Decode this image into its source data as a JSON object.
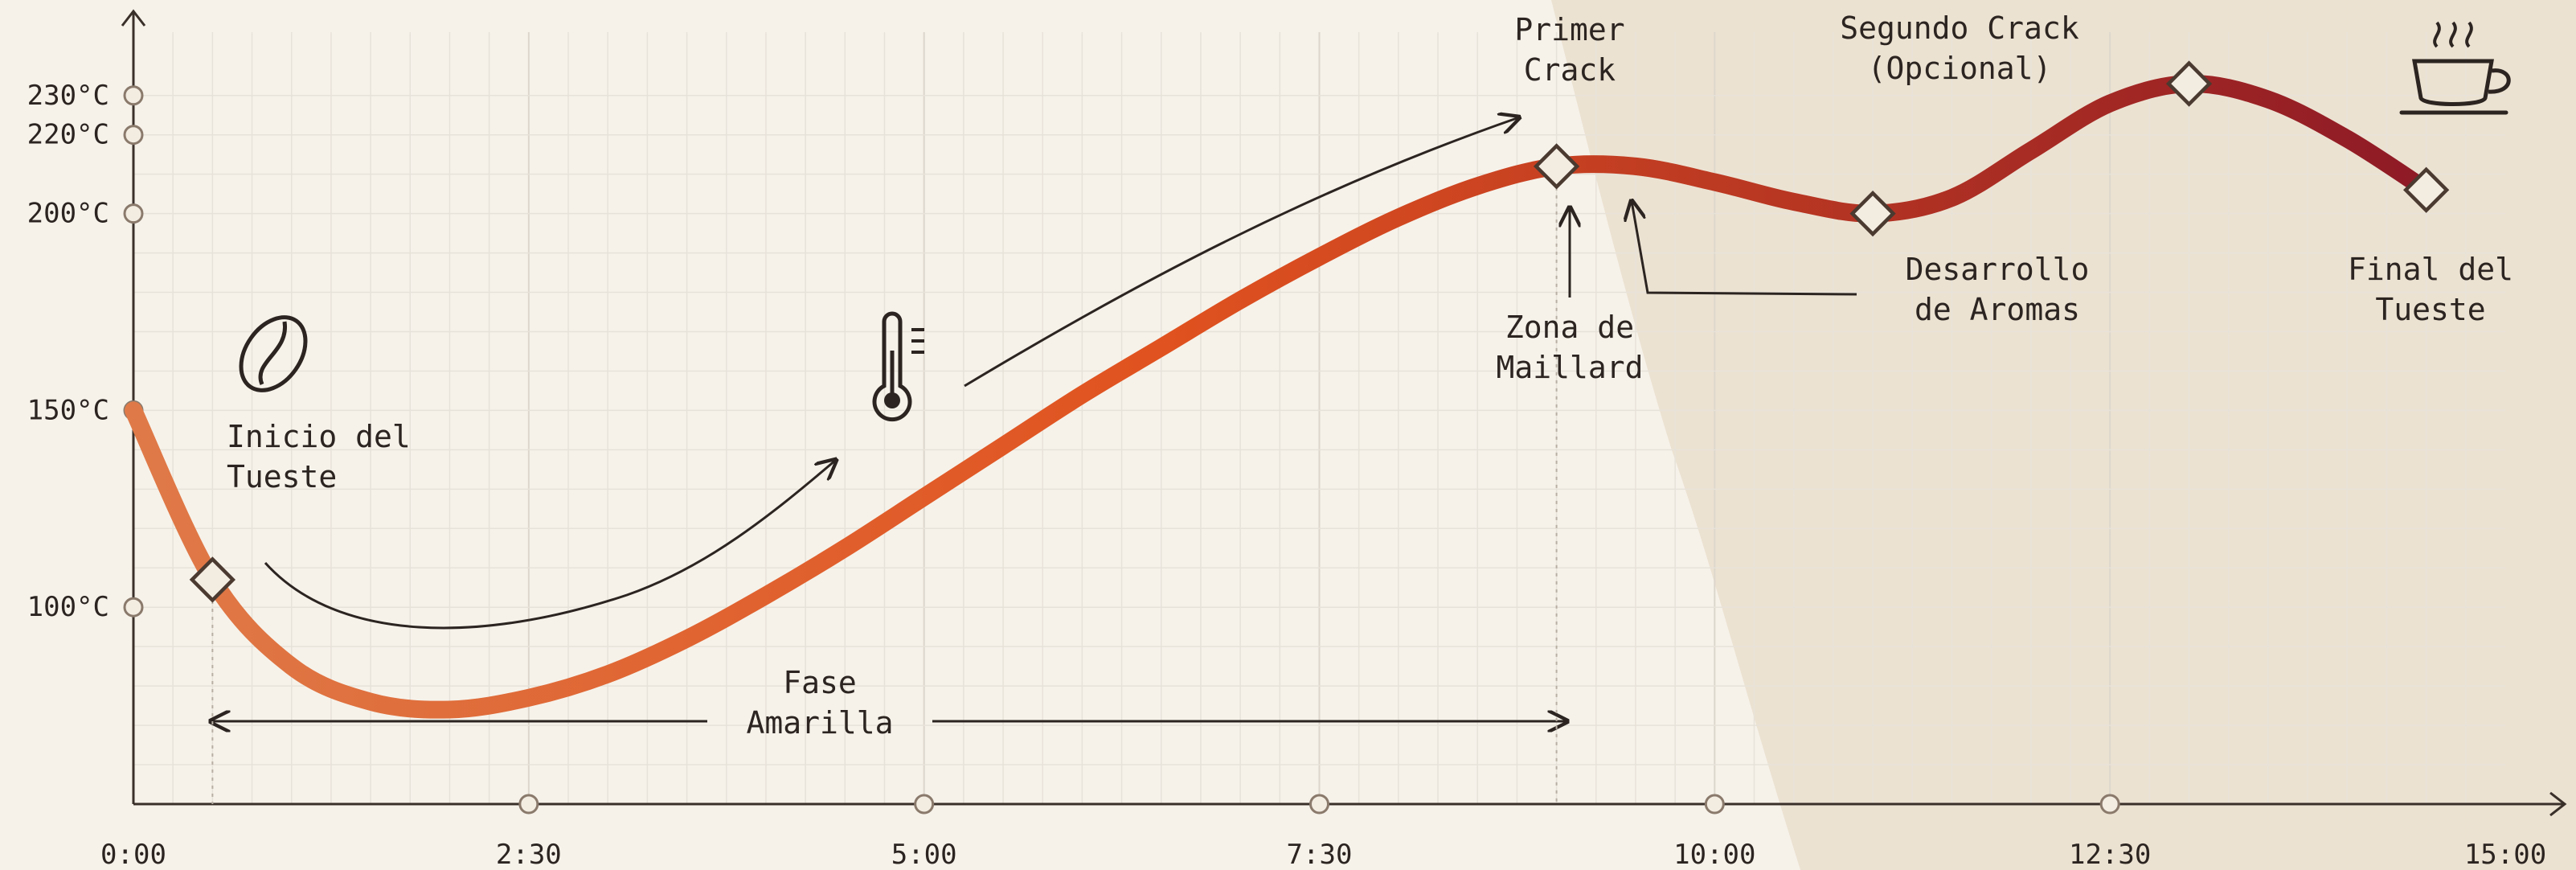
{
  "colors": {
    "background": "#f6f2ea",
    "grid": "#dcd6cc",
    "grid_minor": "#e7e2d9",
    "axis": "#3a302a",
    "shade": "#ece2d2",
    "curve_start": "#df7a48",
    "curve_mid": "#e0521f",
    "curve_end": "#8e1a26",
    "marker_fill": "#f3ece1",
    "marker_stroke": "#4a3a30",
    "ink": "#2b2420"
  },
  "icons": [
    "coffee-bean-icon",
    "thermometer-icon",
    "coffee-cup-icon"
  ],
  "chart_data": {
    "type": "line",
    "title": "",
    "xlabel": "",
    "ylabel": "",
    "x_unit": "min:sec",
    "xlim": [
      "0:00",
      "15:00"
    ],
    "ylim": [
      50,
      242
    ],
    "grid": true,
    "x_ticks": [
      "0:00",
      "2:30",
      "5:00",
      "7:30",
      "10:00",
      "12:30",
      "15:00"
    ],
    "y_ticks": [
      "100°C",
      "150°C",
      "200°C",
      "220°C",
      "230°C"
    ],
    "series": [
      {
        "points": [
          {
            "x": "0:00",
            "y": 150
          },
          {
            "x": "0:30",
            "y": 107
          },
          {
            "x": "1:00",
            "y": 85
          },
          {
            "x": "1:30",
            "y": 76
          },
          {
            "x": "2:00",
            "y": 74
          },
          {
            "x": "2:30",
            "y": 77
          },
          {
            "x": "3:00",
            "y": 83
          },
          {
            "x": "3:30",
            "y": 92
          },
          {
            "x": "4:00",
            "y": 103
          },
          {
            "x": "4:30",
            "y": 115
          },
          {
            "x": "5:00",
            "y": 128
          },
          {
            "x": "5:30",
            "y": 141
          },
          {
            "x": "6:00",
            "y": 154
          },
          {
            "x": "6:30",
            "y": 166
          },
          {
            "x": "7:00",
            "y": 178
          },
          {
            "x": "7:30",
            "y": 189
          },
          {
            "x": "8:00",
            "y": 199
          },
          {
            "x": "8:30",
            "y": 207
          },
          {
            "x": "9:00",
            "y": 212
          },
          {
            "x": "9:30",
            "y": 212
          },
          {
            "x": "10:00",
            "y": 208
          },
          {
            "x": "10:30",
            "y": 203
          },
          {
            "x": "11:00",
            "y": 200
          },
          {
            "x": "11:30",
            "y": 204
          },
          {
            "x": "12:00",
            "y": 216
          },
          {
            "x": "12:30",
            "y": 228
          },
          {
            "x": "13:00",
            "y": 233
          },
          {
            "x": "13:30",
            "y": 229
          },
          {
            "x": "14:00",
            "y": 219
          },
          {
            "x": "14:30",
            "y": 206
          }
        ]
      }
    ],
    "markers": [
      {
        "x": "0:30",
        "y": 107
      },
      {
        "x": "9:00",
        "y": 212
      },
      {
        "x": "11:00",
        "y": 200
      },
      {
        "x": "13:00",
        "y": 233
      },
      {
        "x": "14:30",
        "y": 206
      }
    ],
    "annotations": [
      {
        "lines": [
          "Inicio del",
          "Tueste"
        ]
      },
      {
        "lines": [
          "Fase",
          "Amarilla"
        ]
      },
      {
        "lines": [
          "Primer",
          "Crack"
        ]
      },
      {
        "lines": [
          "Zona de",
          "Maillard"
        ]
      },
      {
        "lines": [
          "Segundo Crack",
          "(Opcional)"
        ]
      },
      {
        "lines": [
          "Desarrollo",
          "de Aromas"
        ]
      },
      {
        "lines": [
          "Final del",
          "Tueste"
        ]
      }
    ]
  }
}
